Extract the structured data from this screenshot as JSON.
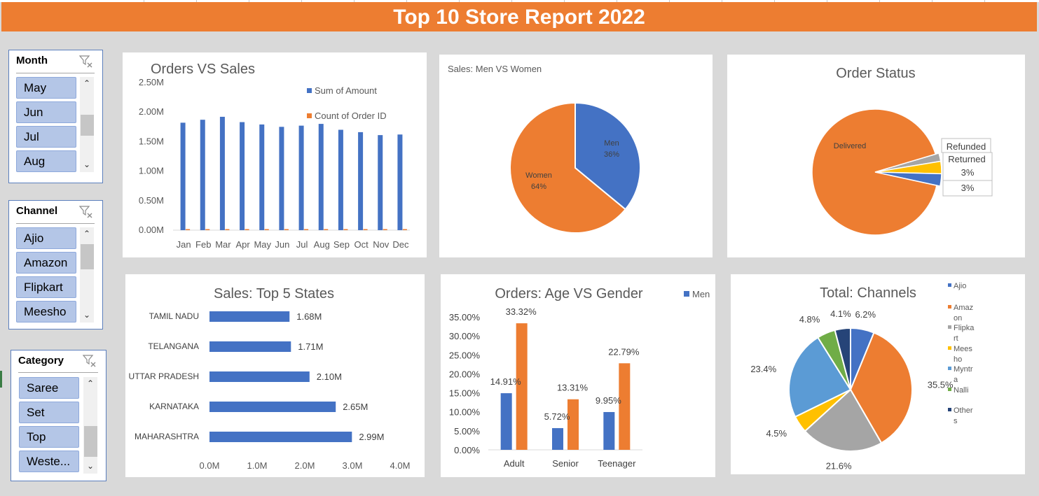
{
  "report_title": "Top 10 Store Report 2022",
  "slicers": {
    "month": {
      "title": "Month",
      "items": [
        "May",
        "Jun",
        "Jul",
        "Aug"
      ]
    },
    "channel": {
      "title": "Channel",
      "items": [
        "Ajio",
        "Amazon",
        "Flipkart",
        "Meesho"
      ]
    },
    "category": {
      "title": "Category",
      "items": [
        "Saree",
        "Set",
        "Top",
        "Weste..."
      ]
    }
  },
  "colors": {
    "blue": "#4472c4",
    "orange": "#ed7d31",
    "gray": "#a5a5a5",
    "yellow": "#ffc000",
    "lightblue": "#5b9bd5",
    "green": "#70ad47",
    "navy": "#264478",
    "banner": "#ed7d31"
  },
  "chart_data": [
    {
      "id": "orders_vs_sales",
      "type": "bar",
      "title": "Orders VS Sales",
      "categories": [
        "Jan",
        "Feb",
        "Mar",
        "Apr",
        "May",
        "Jun",
        "Jul",
        "Aug",
        "Sep",
        "Oct",
        "Nov",
        "Dec"
      ],
      "series": [
        {
          "name": "Sum of Amount",
          "values": [
            1820000,
            1870000,
            1920000,
            1830000,
            1790000,
            1750000,
            1770000,
            1800000,
            1700000,
            1660000,
            1610000,
            1620000
          ]
        },
        {
          "name": "Count of Order ID",
          "values": [
            12000,
            12000,
            12000,
            12000,
            12000,
            12000,
            12000,
            12000,
            12000,
            12000,
            12000,
            12000
          ]
        }
      ],
      "ylim": [
        0,
        2500000
      ],
      "yticks": [
        "0.00M",
        "0.50M",
        "1.00M",
        "1.50M",
        "2.00M",
        "2.50M"
      ],
      "legend": "top-right"
    },
    {
      "id": "sales_men_women",
      "type": "pie",
      "title": "Sales: Men VS Women",
      "slices": [
        {
          "label": "Men",
          "pct_label": "36%",
          "value": 36
        },
        {
          "label": "Women",
          "pct_label": "64%",
          "value": 64
        }
      ]
    },
    {
      "id": "order_status",
      "type": "pie",
      "title": "Order Status",
      "slices": [
        {
          "label": "Delivered",
          "value": 92
        },
        {
          "label": "Refunded",
          "value": 2
        },
        {
          "label": "Returned",
          "value": 3,
          "pct_label": "3%"
        },
        {
          "label": "",
          "value": 3,
          "pct_label": "3%"
        }
      ]
    },
    {
      "id": "top5_states",
      "type": "bar",
      "title": "Sales: Top 5 States",
      "orientation": "horizontal",
      "categories": [
        "TAMIL NADU",
        "TELANGANA",
        "UTTAR PRADESH",
        "KARNATAKA",
        "MAHARASHTRA"
      ],
      "values": [
        1.68,
        1.71,
        2.1,
        2.65,
        2.99
      ],
      "value_labels": [
        "1.68M",
        "1.71M",
        "2.10M",
        "2.65M",
        "2.99M"
      ],
      "xlim": [
        0,
        4
      ],
      "xticks": [
        "0.0M",
        "1.0M",
        "2.0M",
        "3.0M",
        "4.0M"
      ]
    },
    {
      "id": "age_vs_gender",
      "type": "bar",
      "title": "Orders: Age VS Gender",
      "categories": [
        "Adult",
        "Senior",
        "Teenager"
      ],
      "series": [
        {
          "name": "Men",
          "values": [
            14.91,
            5.72,
            9.95
          ],
          "labels": [
            "14.91%",
            "5.72%",
            "9.95%"
          ]
        },
        {
          "name": "",
          "values": [
            33.32,
            13.31,
            22.79
          ],
          "labels": [
            "33.32%",
            "13.31%",
            "22.79%"
          ]
        }
      ],
      "ylim": [
        0,
        35
      ],
      "yticks": [
        "0.00%",
        "5.00%",
        "10.00%",
        "15.00%",
        "20.00%",
        "25.00%",
        "30.00%",
        "35.00%"
      ],
      "legend": "top-right"
    },
    {
      "id": "total_channels",
      "type": "pie",
      "title": "Total: Channels",
      "slices": [
        {
          "label": "Ajio",
          "value": 6.2,
          "pct_label": "6.2%"
        },
        {
          "label": "Amazon",
          "value": 35.5,
          "pct_label": "35.5%"
        },
        {
          "label": "Flipkart",
          "value": 21.6,
          "pct_label": "21.6%"
        },
        {
          "label": "Meesho",
          "value": 4.5,
          "pct_label": "4.5%"
        },
        {
          "label": "Myntra",
          "value": 23.4,
          "pct_label": "23.4%"
        },
        {
          "label": "Nalli",
          "value": 4.8,
          "pct_label": "4.8%"
        },
        {
          "label": "Others",
          "value": 4.1,
          "pct_label": "4.1%"
        }
      ],
      "legend_labels": [
        [
          "Ajio"
        ],
        [
          "Amaz",
          "on"
        ],
        [
          "Flipka",
          "rt"
        ],
        [
          "Mees",
          "ho"
        ],
        [
          "Myntr",
          "a"
        ],
        [
          "Nalli"
        ],
        [
          "Other",
          "s"
        ]
      ],
      "legend": "right"
    }
  ]
}
